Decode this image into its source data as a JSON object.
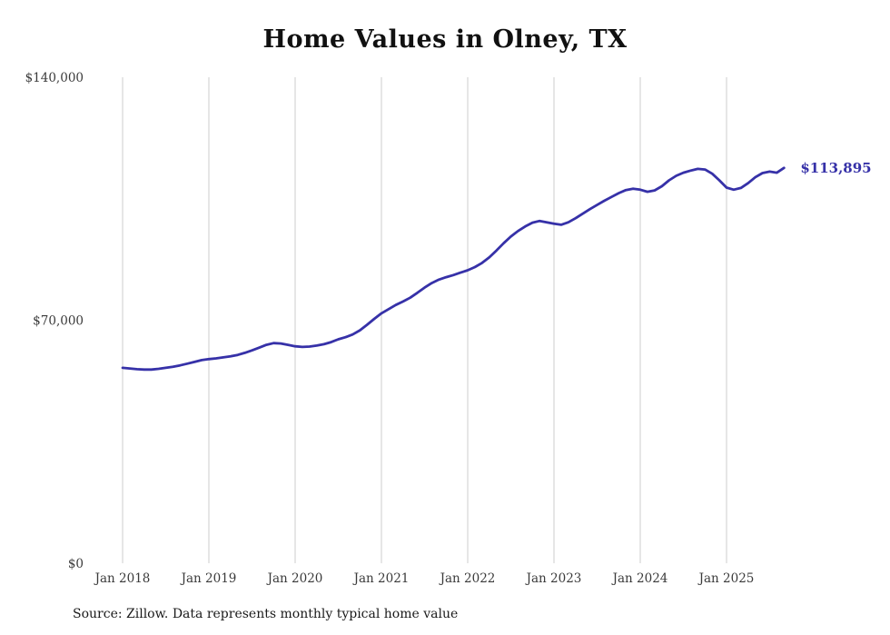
{
  "chart_data": {
    "type": "line",
    "title": "Home Values in Olney, TX",
    "series_name": "Monthly typical home value",
    "unit": "USD",
    "start_month": "2018-01",
    "end_month": "2025-09",
    "frequency": "monthly",
    "ylim": [
      0,
      140000
    ],
    "grid": "vertical-only",
    "line_color": "#3631a8",
    "grid_color": "#cccccc",
    "tick_color": "#3a3a3a",
    "end_label": "$113,895",
    "end_value": 113895,
    "source_note": "Source: Zillow. Data represents monthly typical home value",
    "y_ticks": [
      {
        "value": 0,
        "label": "$0"
      },
      {
        "value": 70000,
        "label": "$70,000"
      },
      {
        "value": 140000,
        "label": "$140,000"
      }
    ],
    "x_ticks": [
      {
        "index": 0,
        "label": "Jan 2018"
      },
      {
        "index": 12,
        "label": "Jan 2019"
      },
      {
        "index": 24,
        "label": "Jan 2020"
      },
      {
        "index": 36,
        "label": "Jan 2021"
      },
      {
        "index": 48,
        "label": "Jan 2022"
      },
      {
        "index": 60,
        "label": "Jan 2023"
      },
      {
        "index": 72,
        "label": "Jan 2024"
      },
      {
        "index": 84,
        "label": "Jan 2025"
      }
    ],
    "values": [
      56300,
      56100,
      55900,
      55800,
      55800,
      56000,
      56300,
      56600,
      57000,
      57500,
      58000,
      58500,
      58800,
      59000,
      59300,
      59600,
      60000,
      60600,
      61300,
      62100,
      62900,
      63400,
      63300,
      62900,
      62500,
      62300,
      62400,
      62700,
      63100,
      63700,
      64500,
      65100,
      65900,
      67100,
      68700,
      70400,
      72000,
      73200,
      74400,
      75400,
      76500,
      77900,
      79400,
      80700,
      81700,
      82400,
      83000,
      83700,
      84400,
      85300,
      86500,
      88100,
      90100,
      92200,
      94100,
      95700,
      97000,
      98100,
      98600,
      98200,
      97800,
      97500,
      98200,
      99400,
      100700,
      102000,
      103200,
      104400,
      105500,
      106600,
      107500,
      107900,
      107600,
      107000,
      107400,
      108600,
      110300,
      111600,
      112500,
      113100,
      113600,
      113400,
      112200,
      110300,
      108200,
      107600,
      108100,
      109500,
      111200,
      112400,
      112800,
      112500,
      113895
    ]
  }
}
